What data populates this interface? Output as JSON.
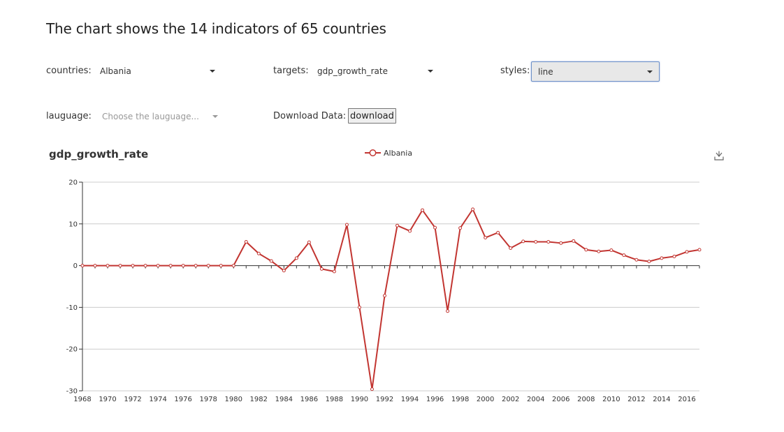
{
  "page": {
    "title": "The chart shows the 14 indicators of 65 countries"
  },
  "controls": {
    "countries": {
      "label": "countries:",
      "value": "Albania"
    },
    "targets": {
      "label": "targets:",
      "value": "gdp_growth_rate"
    },
    "styles": {
      "label": "styles:",
      "value": "line"
    },
    "language": {
      "label": "lauguage:",
      "placeholder": "Choose the lauguage..."
    },
    "download": {
      "label": "Download Data:",
      "button": "download"
    }
  },
  "icons": {
    "save": "download-icon",
    "caret": "caret-down-icon"
  },
  "colors": {
    "series": "#c23531",
    "axis": "#333333",
    "grid": "#cccccc"
  },
  "chart_data": {
    "type": "line",
    "title": "gdp_growth_rate",
    "legend": {
      "position": "top-center",
      "entries": [
        "Albania"
      ]
    },
    "x": [
      1968,
      1969,
      1970,
      1971,
      1972,
      1973,
      1974,
      1975,
      1976,
      1977,
      1978,
      1979,
      1980,
      1981,
      1982,
      1983,
      1984,
      1985,
      1986,
      1987,
      1988,
      1989,
      1990,
      1991,
      1992,
      1993,
      1994,
      1995,
      1996,
      1997,
      1998,
      1999,
      2000,
      2001,
      2002,
      2003,
      2004,
      2005,
      2006,
      2007,
      2008,
      2009,
      2010,
      2011,
      2012,
      2013,
      2014,
      2015,
      2016,
      2017
    ],
    "x_tick_labels": [
      "1968",
      "1970",
      "1972",
      "1974",
      "1976",
      "1978",
      "1980",
      "1982",
      "1984",
      "1986",
      "1988",
      "1990",
      "1992",
      "1994",
      "1996",
      "1998",
      "2000",
      "2002",
      "2004",
      "2006",
      "2008",
      "2010",
      "2012",
      "2014",
      "2016"
    ],
    "ylim": [
      -30,
      20
    ],
    "y_ticks": [
      -30,
      -20,
      -10,
      0,
      10,
      20
    ],
    "grid": true,
    "series": [
      {
        "name": "Albania",
        "values": [
          0,
          0,
          0,
          0,
          0,
          0,
          0,
          0,
          0,
          0,
          0,
          0,
          0,
          5.7,
          2.9,
          1.1,
          -1.2,
          1.8,
          5.6,
          -0.8,
          -1.4,
          9.8,
          -10,
          -29.6,
          -7.2,
          9.6,
          8.3,
          13.3,
          9.1,
          -10.9,
          9,
          13.5,
          6.7,
          7.9,
          4.2,
          5.8,
          5.7,
          5.7,
          5.4,
          5.9,
          3.8,
          3.4,
          3.7,
          2.5,
          1.4,
          1,
          1.8,
          2.2,
          3.3,
          3.8
        ]
      }
    ]
  }
}
